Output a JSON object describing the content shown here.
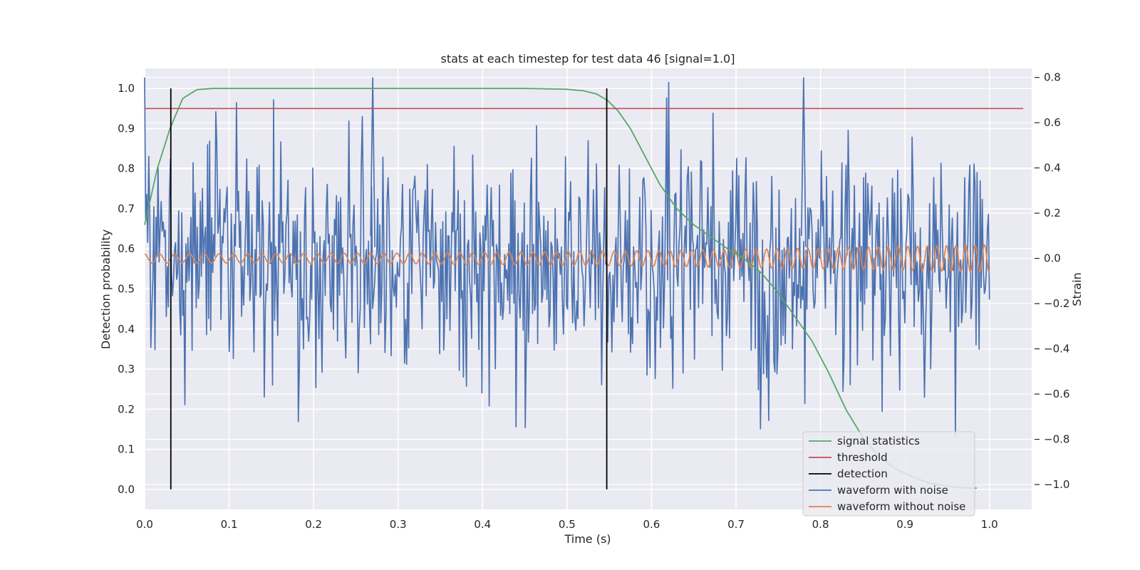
{
  "chart_data": {
    "type": "line",
    "title": "stats at each timestep for test data 46 [signal=1.0]",
    "xlabel": "Time (s)",
    "ylabel_left": "Detection probability",
    "ylabel_right": "Strain",
    "xlim": [
      0.0,
      1.05
    ],
    "ylim_left": [
      -0.05,
      1.05
    ],
    "ylim_right": [
      -1.11,
      0.84
    ],
    "xticks": [
      0.0,
      0.1,
      0.2,
      0.3,
      0.4,
      0.5,
      0.6,
      0.7,
      0.8,
      0.9,
      1.0
    ],
    "xtick_labels": [
      "0.0",
      "0.1",
      "0.2",
      "0.3",
      "0.4",
      "0.5",
      "0.6",
      "0.7",
      "0.8",
      "0.9",
      "1.0"
    ],
    "yticks_left": [
      0.0,
      0.1,
      0.2,
      0.3,
      0.4,
      0.5,
      0.6,
      0.7,
      0.8,
      0.9,
      1.0
    ],
    "ytick_labels_left": [
      "0.0",
      "0.1",
      "0.2",
      "0.3",
      "0.4",
      "0.5",
      "0.6",
      "0.7",
      "0.8",
      "0.9",
      "1.0"
    ],
    "yticks_right": [
      -1.0,
      -0.8,
      -0.6,
      -0.4,
      -0.2,
      0.0,
      0.2,
      0.4,
      0.6,
      0.8
    ],
    "ytick_labels_right": [
      "−1.0",
      "−0.8",
      "−0.6",
      "−0.4",
      "−0.2",
      "0.0",
      "0.2",
      "0.4",
      "0.6",
      "0.8"
    ],
    "grid": true,
    "legend_position": "lower-right",
    "series": [
      {
        "name": "signal statistics",
        "axis": "left",
        "color": "#55a868",
        "x": [
          0.0,
          0.015,
          0.03,
          0.045,
          0.062,
          0.08,
          0.1,
          0.2,
          0.3,
          0.4,
          0.45,
          0.5,
          0.52,
          0.535,
          0.548,
          0.56,
          0.575,
          0.59,
          0.61,
          0.63,
          0.65,
          0.67,
          0.69,
          0.71,
          0.73,
          0.75,
          0.77,
          0.79,
          0.81,
          0.83,
          0.85,
          0.87,
          0.89,
          0.91,
          0.93,
          0.95,
          0.97,
          0.985
        ],
        "y": [
          0.66,
          0.8,
          0.9,
          0.975,
          0.997,
          1.0,
          1.0,
          1.0,
          1.0,
          1.0,
          1.0,
          0.998,
          0.994,
          0.986,
          0.97,
          0.945,
          0.9,
          0.84,
          0.76,
          0.7,
          0.66,
          0.63,
          0.6,
          0.575,
          0.54,
          0.49,
          0.43,
          0.37,
          0.29,
          0.2,
          0.13,
          0.08,
          0.05,
          0.03,
          0.015,
          0.008,
          0.004,
          0.003
        ]
      },
      {
        "name": "threshold",
        "axis": "left",
        "color": "#c44e52",
        "x": [
          -0.0,
          1.04
        ],
        "y": [
          0.95,
          0.95
        ]
      },
      {
        "name": "detection",
        "axis": "left",
        "color": "#000000",
        "vlines": [
          0.031,
          0.547
        ],
        "y": [
          0.0,
          1.0
        ]
      },
      {
        "name": "waveform with noise",
        "axis": "right",
        "color": "#4c72b0",
        "x_range": [
          0.0,
          1.0
        ],
        "num_points": 820,
        "amplitude_range": [
          -0.8,
          0.8
        ],
        "note_peaks": [
          0.27,
          0.78
        ]
      },
      {
        "name": "waveform without noise",
        "axis": "right",
        "color": "#dd8452",
        "x_range": [
          0.0,
          1.0
        ],
        "amplitude_start": 0.02,
        "amplitude_end": 0.06,
        "freq_start": 55,
        "freq_end": 90
      }
    ]
  }
}
